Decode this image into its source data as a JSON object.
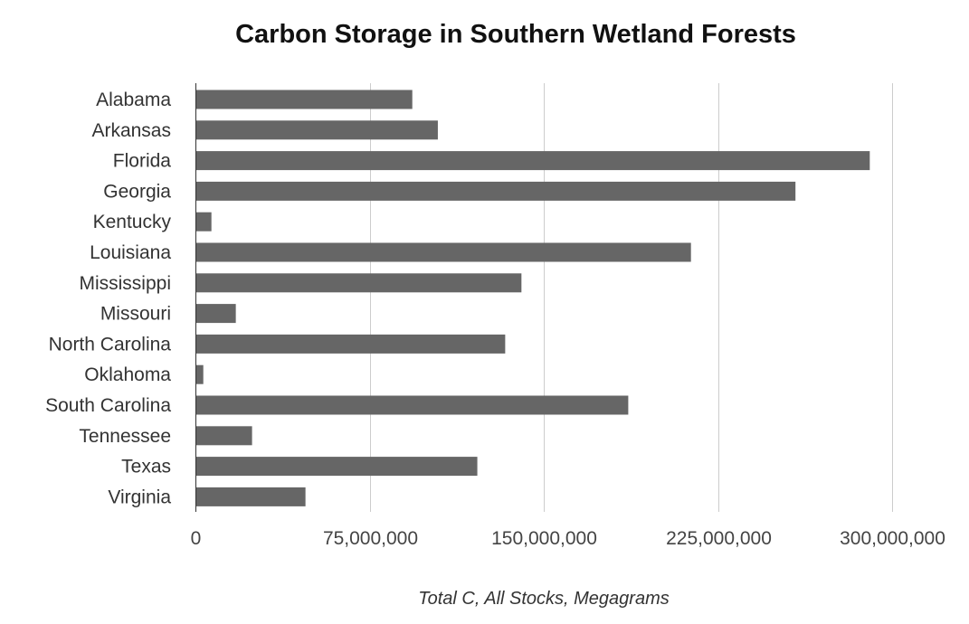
{
  "chart_data": {
    "type": "bar",
    "orientation": "horizontal",
    "title": "Carbon Storage in Southern Wetland Forests",
    "xlabel": "Total C, All Stocks, Megagrams",
    "ylabel": "",
    "categories": [
      "Alabama",
      "Arkansas",
      "Florida",
      "Georgia",
      "Kentucky",
      "Louisiana",
      "Mississippi",
      "Missouri",
      "North Carolina",
      "Oklahoma",
      "South Carolina",
      "Tennessee",
      "Texas",
      "Virginia"
    ],
    "values": [
      93000000,
      104000000,
      290000000,
      258000000,
      6500000,
      213000000,
      140000000,
      17000000,
      133000000,
      3000000,
      186000000,
      24000000,
      121000000,
      47000000
    ],
    "xlim": [
      0,
      300000000
    ],
    "xticks": [
      0,
      75000000,
      150000000,
      225000000,
      300000000
    ],
    "xtick_labels": [
      "0",
      "75,000,000",
      "150,000,000",
      "225,000,000",
      "300,000,000"
    ],
    "bar_color": "#666666",
    "grid": true,
    "legend": "none"
  }
}
